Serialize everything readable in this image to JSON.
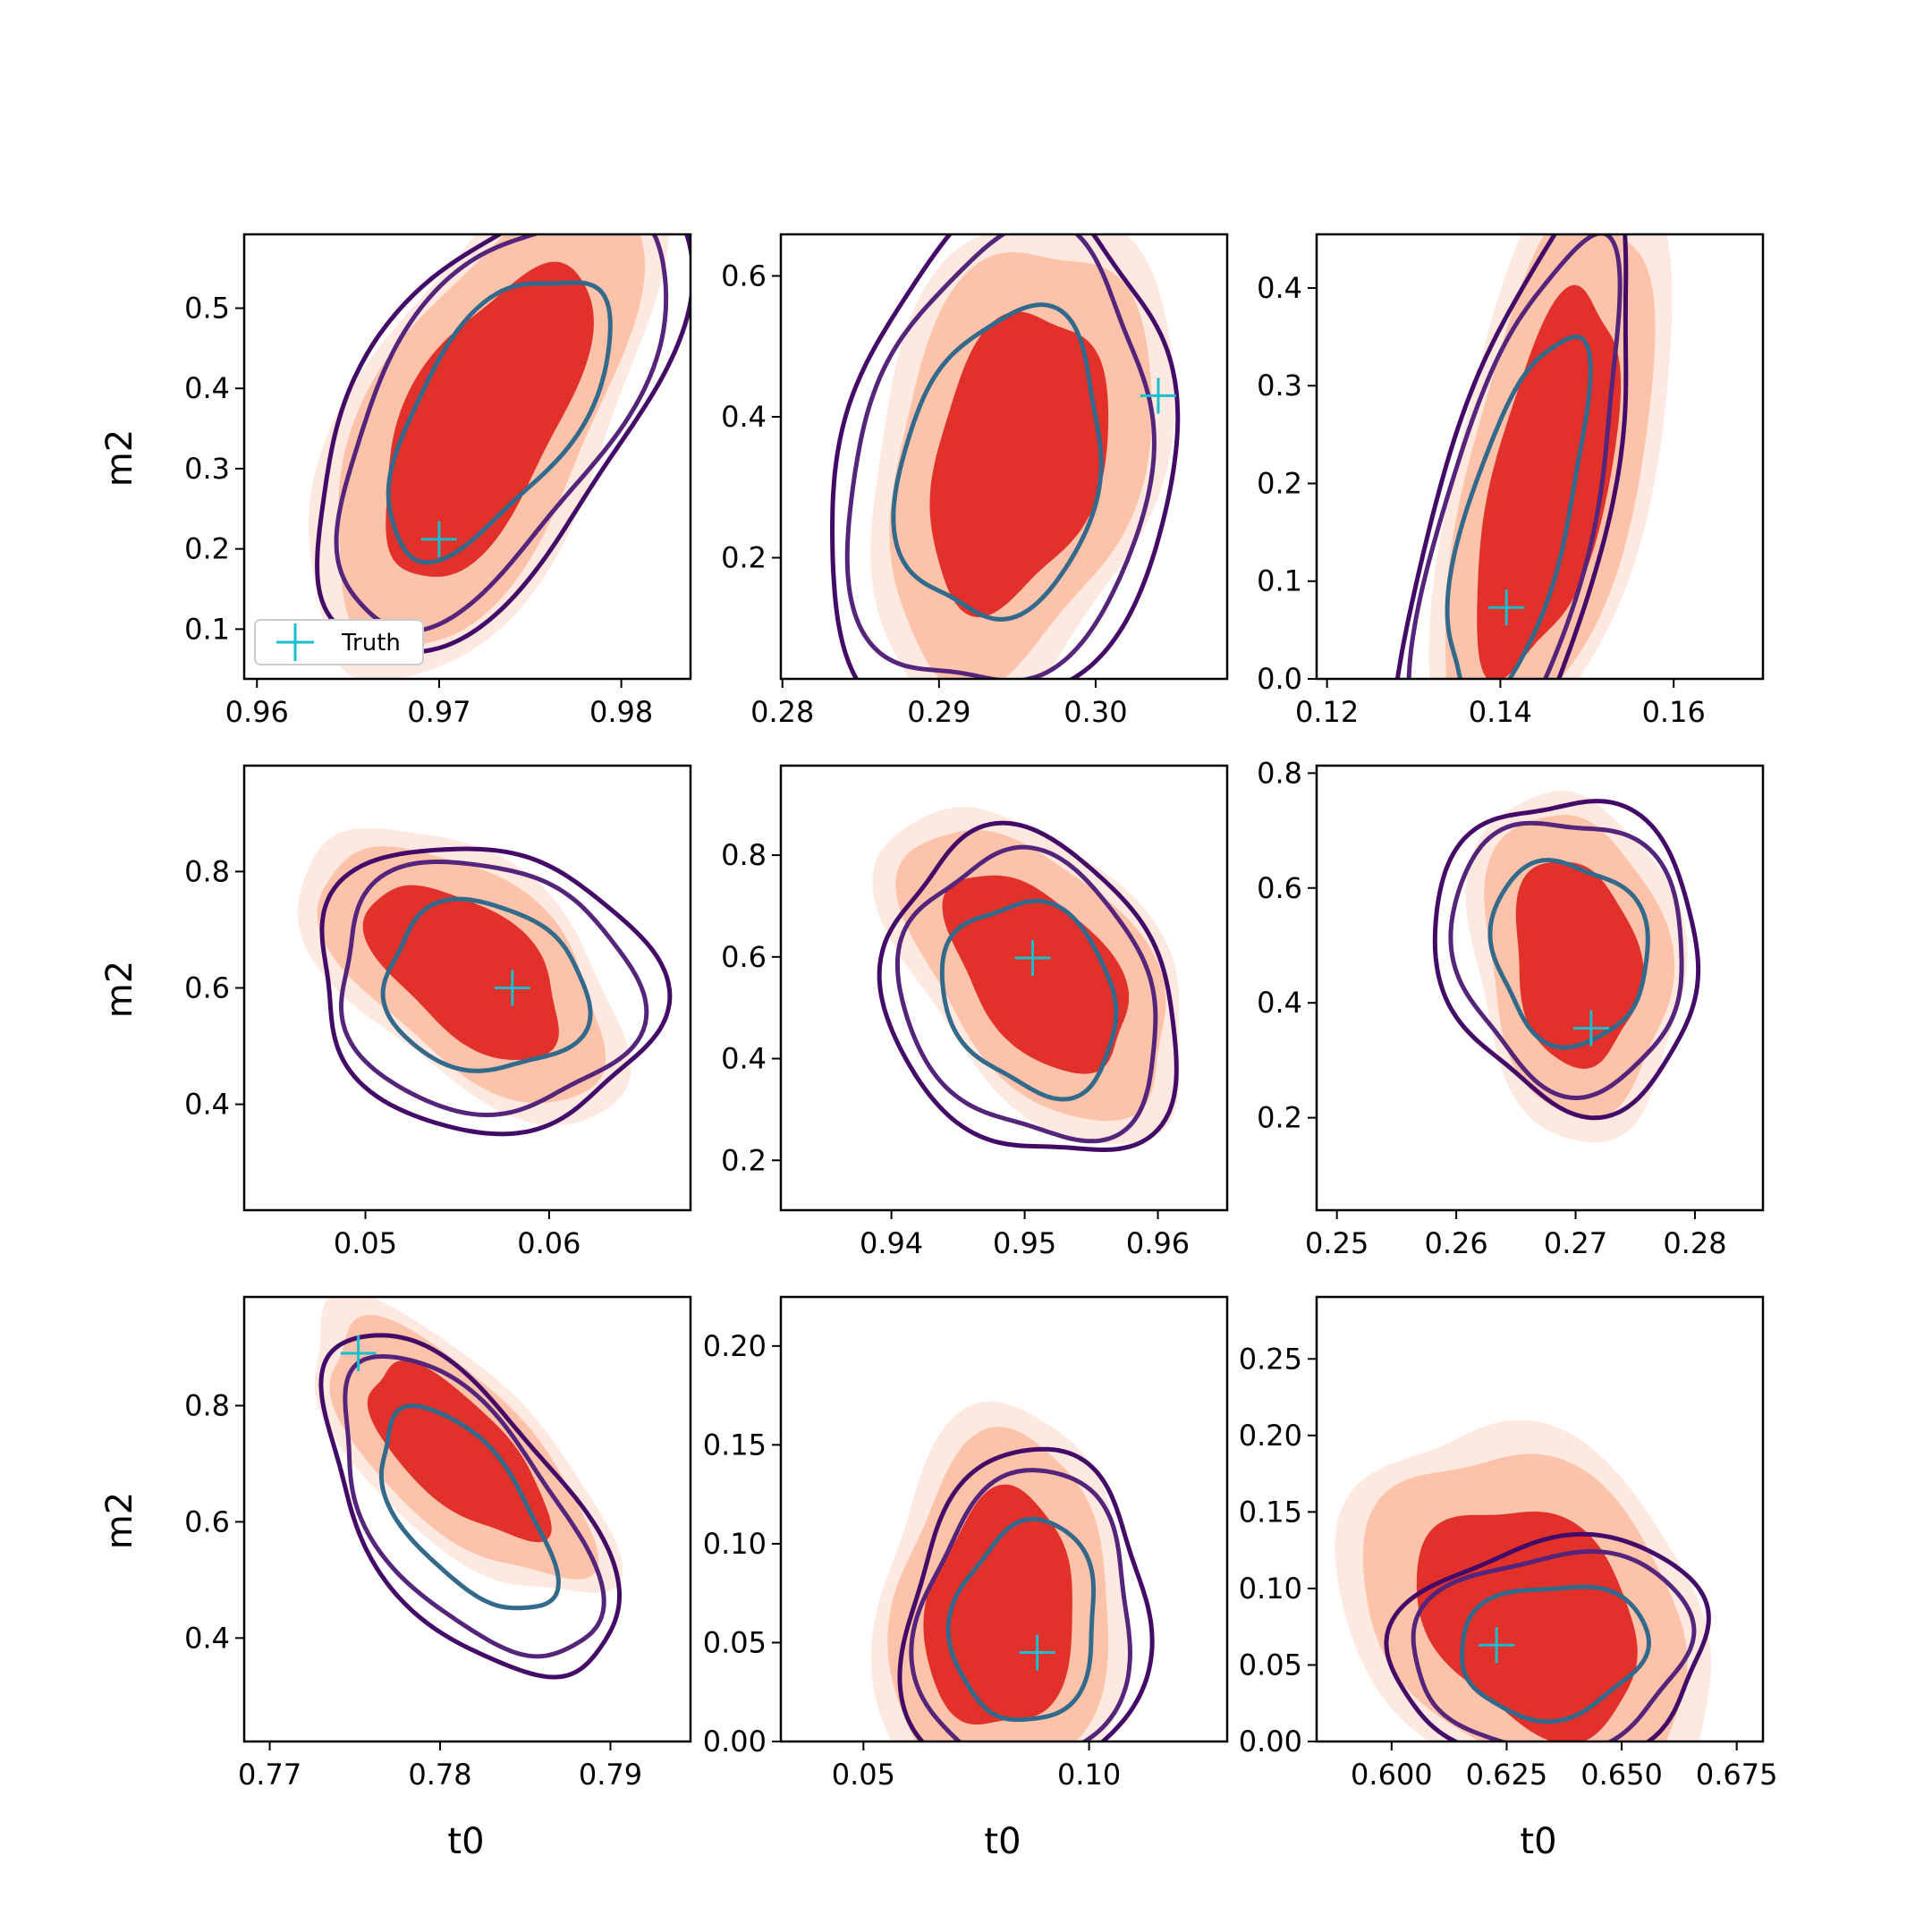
{
  "figure": {
    "xlabel": "t0",
    "ylabel": "m2",
    "legend_label": "Truth",
    "legend_location": "lower-left of top-left panel"
  },
  "colors": {
    "filled_levels": [
      "#fee9e1",
      "#fcc3aa",
      "#e1312a"
    ],
    "line_levels": [
      "#440a68",
      "#54257a",
      "#336a8c"
    ],
    "truth_marker": "#17becf"
  },
  "chart_data": [
    {
      "type": "contour",
      "panel": "row1-col1",
      "xlim": [
        0.9593,
        0.9838
      ],
      "ylim": [
        0.038,
        0.592
      ],
      "xticks": [
        "0.96",
        "0.97",
        "0.98"
      ],
      "xtick_values": [
        0.96,
        0.97,
        0.98
      ],
      "yticks": [
        "0.1",
        "0.2",
        "0.3",
        "0.4",
        "0.5"
      ],
      "ytick_values": [
        0.1,
        0.2,
        0.3,
        0.4,
        0.5
      ],
      "truth": [
        0.97,
        0.212
      ],
      "filled_center": [
        0.9725,
        0.36
      ],
      "filled_spread": [
        0.0038,
        0.13
      ],
      "filled_rho": 0.62,
      "line_center": [
        0.9732,
        0.37
      ],
      "line_spread": [
        0.0042,
        0.12
      ],
      "line_rho": 0.6
    },
    {
      "type": "contour",
      "panel": "row1-col2",
      "xlim": [
        0.2799,
        0.3084
      ],
      "ylim": [
        0.028,
        0.659
      ],
      "xticks": [
        "0.28",
        "0.29",
        "0.30"
      ],
      "xtick_values": [
        0.28,
        0.29,
        0.3
      ],
      "yticks": [
        "0.2",
        "0.4",
        "0.6"
      ],
      "ytick_values": [
        0.2,
        0.4,
        0.6
      ],
      "truth": [
        0.304,
        0.43
      ],
      "filled_center": [
        0.295,
        0.34
      ],
      "filled_spread": [
        0.0038,
        0.14
      ],
      "filled_rho": 0.3,
      "line_center": [
        0.294,
        0.33
      ],
      "line_spread": [
        0.0045,
        0.15
      ],
      "line_rho": 0.2
    },
    {
      "type": "contour",
      "panel": "row1-col3",
      "xlim": [
        0.1188,
        0.1703
      ],
      "ylim": [
        0.0,
        0.4549
      ],
      "xticks": [
        "0.12",
        "0.14",
        "0.16"
      ],
      "xtick_values": [
        0.12,
        0.14,
        0.16
      ],
      "yticks": [
        "0.0",
        "0.1",
        "0.2",
        "0.3",
        "0.4"
      ],
      "ytick_values": [
        0.0,
        0.1,
        0.2,
        0.3,
        0.4
      ],
      "truth": [
        0.1407,
        0.073
      ],
      "filled_center": [
        0.1455,
        0.2
      ],
      "filled_spread": [
        0.0055,
        0.13
      ],
      "filled_rho": 0.55,
      "line_center": [
        0.142,
        0.16
      ],
      "line_spread": [
        0.0055,
        0.13
      ],
      "line_rho": 0.65
    },
    {
      "type": "contour",
      "panel": "row2-col1",
      "xlim": [
        0.0434,
        0.0677
      ],
      "ylim": [
        0.218,
        0.982
      ],
      "xticks": [
        "0.05",
        "0.06"
      ],
      "xtick_values": [
        0.05,
        0.06
      ],
      "yticks": [
        "0.4",
        "0.6",
        "0.8"
      ],
      "ytick_values": [
        0.4,
        0.6,
        0.8
      ],
      "truth": [
        0.058,
        0.6
      ],
      "filled_center": [
        0.0555,
        0.63
      ],
      "filled_spread": [
        0.0035,
        0.1
      ],
      "filled_rho": -0.55,
      "line_center": [
        0.0565,
        0.6
      ],
      "line_spread": [
        0.0038,
        0.1
      ],
      "line_rho": -0.1
    },
    {
      "type": "contour",
      "panel": "row2-col2",
      "xlim": [
        0.9317,
        0.9652
      ],
      "ylim": [
        0.102,
        0.976
      ],
      "xticks": [
        "0.94",
        "0.95",
        "0.96"
      ],
      "xtick_values": [
        0.94,
        0.95,
        0.96
      ],
      "yticks": [
        "0.2",
        "0.4",
        "0.6",
        "0.8"
      ],
      "ytick_values": [
        0.2,
        0.4,
        0.6,
        0.8
      ],
      "truth": [
        0.9506,
        0.598
      ],
      "filled_center": [
        0.951,
        0.57
      ],
      "filled_spread": [
        0.0045,
        0.13
      ],
      "filled_rho": -0.5,
      "line_center": [
        0.9505,
        0.52
      ],
      "line_spread": [
        0.0045,
        0.13
      ],
      "line_rho": -0.2
    },
    {
      "type": "contour",
      "panel": "row2-col3",
      "xlim": [
        0.2483,
        0.2857
      ],
      "ylim": [
        0.039,
        0.813
      ],
      "xticks": [
        "0.25",
        "0.26",
        "0.27",
        "0.28"
      ],
      "xtick_values": [
        0.25,
        0.26,
        0.27,
        0.28
      ],
      "yticks": [
        "0.2",
        "0.4",
        "0.6",
        "0.8"
      ],
      "ytick_values": [
        0.2,
        0.4,
        0.6,
        0.8
      ],
      "truth": [
        0.2713,
        0.356
      ],
      "filled_center": [
        0.27,
        0.47
      ],
      "filled_spread": [
        0.0035,
        0.12
      ],
      "filled_rho": -0.15,
      "line_center": [
        0.2695,
        0.49
      ],
      "line_spread": [
        0.0045,
        0.11
      ],
      "line_rho": -0.1
    },
    {
      "type": "contour",
      "panel": "row3-col1",
      "xlim": [
        0.7685,
        0.7947
      ],
      "ylim": [
        0.222,
        0.987
      ],
      "xticks": [
        "0.77",
        "0.78",
        "0.79"
      ],
      "xtick_values": [
        0.77,
        0.78,
        0.79
      ],
      "yticks": [
        "0.4",
        "0.6",
        "0.8"
      ],
      "ytick_values": [
        0.4,
        0.6,
        0.8
      ],
      "truth": [
        0.7752,
        0.89
      ],
      "filled_center": [
        0.781,
        0.72
      ],
      "filled_spread": [
        0.0035,
        0.1
      ],
      "filled_rho": -0.7,
      "line_center": [
        0.7815,
        0.62
      ],
      "line_spread": [
        0.0035,
        0.12
      ],
      "line_rho": -0.6
    },
    {
      "type": "contour",
      "panel": "row3-col2",
      "xlim": [
        0.0317,
        0.1306
      ],
      "ylim": [
        0.0,
        0.2248
      ],
      "xticks": [
        "0.05",
        "0.10"
      ],
      "xtick_values": [
        0.05,
        0.1
      ],
      "yticks": [
        "0.00",
        "0.05",
        "0.10",
        "0.15",
        "0.20"
      ],
      "ytick_values": [
        0.0,
        0.05,
        0.1,
        0.15,
        0.2
      ],
      "truth": [
        0.0885,
        0.045
      ],
      "filled_center": [
        0.0805,
        0.065
      ],
      "filled_spread": [
        0.011,
        0.04
      ],
      "filled_rho": 0.1,
      "line_center": [
        0.086,
        0.06
      ],
      "line_spread": [
        0.011,
        0.035
      ],
      "line_rho": 0.1
    },
    {
      "type": "contour",
      "panel": "row3-col3",
      "xlim": [
        0.5837,
        0.6807
      ],
      "ylim": [
        0.0,
        0.2905
      ],
      "xticks": [
        "0.600",
        "0.625",
        "0.650",
        "0.675"
      ],
      "xtick_values": [
        0.6,
        0.625,
        0.65,
        0.675
      ],
      "yticks": [
        "0.00",
        "0.05",
        "0.10",
        "0.15",
        "0.20",
        "0.25"
      ],
      "ytick_values": [
        0.0,
        0.05,
        0.1,
        0.15,
        0.2,
        0.25
      ],
      "truth": [
        0.6228,
        0.063
      ],
      "filled_center": [
        0.63,
        0.08
      ],
      "filled_spread": [
        0.016,
        0.05
      ],
      "filled_rho": -0.3,
      "line_center": [
        0.635,
        0.06
      ],
      "line_spread": [
        0.014,
        0.03
      ],
      "line_rho": 0.1
    }
  ]
}
